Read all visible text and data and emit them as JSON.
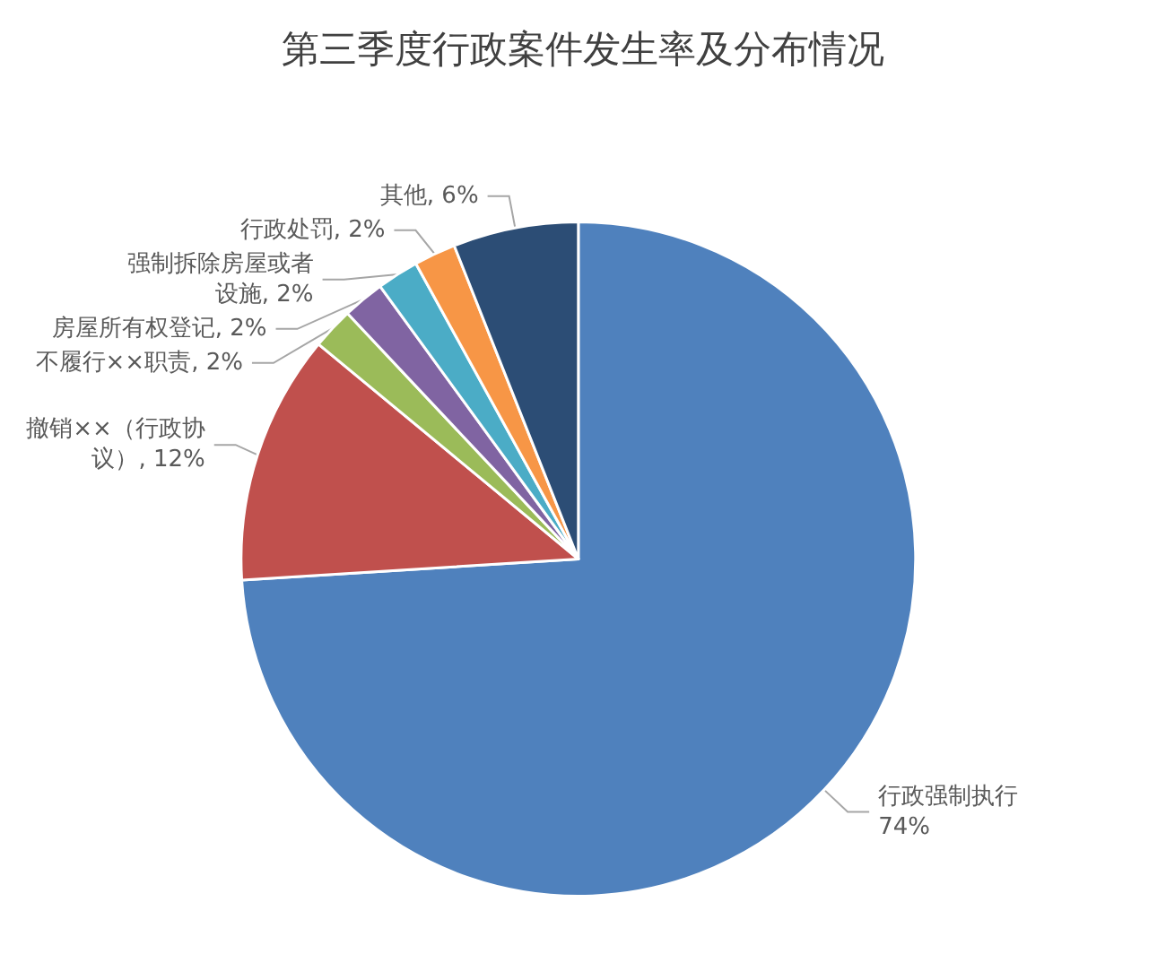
{
  "chart_data": {
    "type": "pie",
    "title": "第三季度行政案件发生率及分布情况",
    "categories": [
      "行政强制执行",
      "撤销××（行政协议）",
      "不履行××职责",
      "房屋所有权登记",
      "强制拆除房屋或者设施",
      "行政处罚",
      "其他"
    ],
    "values": [
      74,
      12,
      2,
      2,
      2,
      2,
      6
    ],
    "value_labels": [
      "74%",
      "12%",
      "2%",
      "2%",
      "2%",
      "2%",
      "6%"
    ],
    "colors": [
      "#4f81bd",
      "#c0504d",
      "#9bbb59",
      "#8064a2",
      "#4bacc6",
      "#f79646",
      "#2c4d75"
    ]
  }
}
